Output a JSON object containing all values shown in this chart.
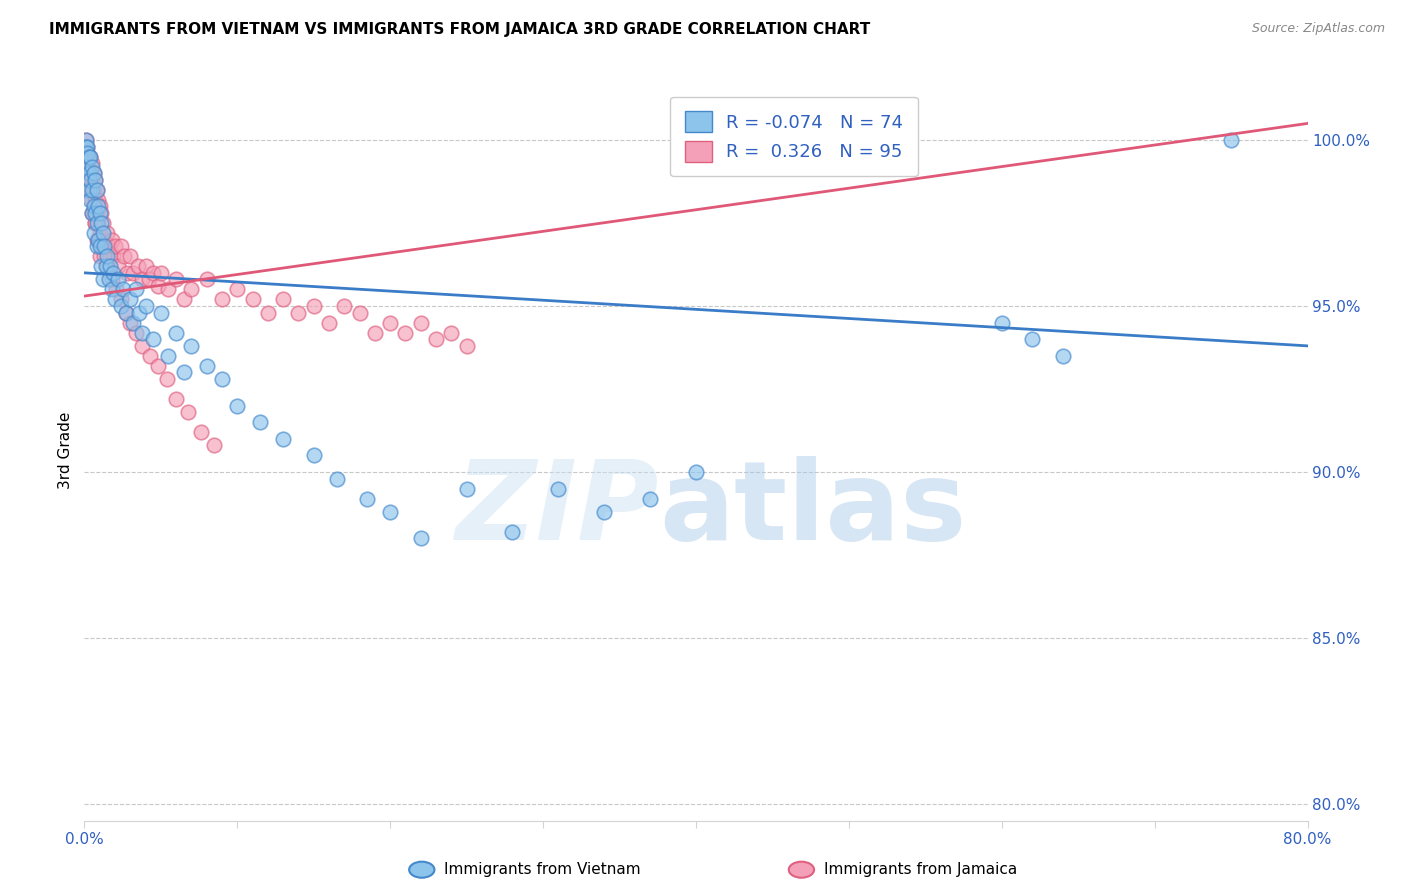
{
  "title": "IMMIGRANTS FROM VIETNAM VS IMMIGRANTS FROM JAMAICA 3RD GRADE CORRELATION CHART",
  "source": "Source: ZipAtlas.com",
  "ylabel": "3rd Grade",
  "right_yticks": [
    0.8,
    0.85,
    0.9,
    0.95,
    1.0
  ],
  "right_yticklabels": [
    "80.0%",
    "85.0%",
    "90.0%",
    "95.0%",
    "100.0%"
  ],
  "xlim": [
    0.0,
    0.8
  ],
  "ylim": [
    0.795,
    1.018
  ],
  "xticks": [
    0.0,
    0.1,
    0.2,
    0.3,
    0.4,
    0.5,
    0.6,
    0.7,
    0.8
  ],
  "xticklabels": [
    "0.0%",
    "",
    "",
    "",
    "",
    "",
    "",
    "",
    "80.0%"
  ],
  "color_vietnam": "#8CC4EC",
  "color_jamaica": "#F4A0B8",
  "edge_vietnam": "#4488CC",
  "edge_jamaica": "#E06080",
  "line_color_vietnam": "#3A7CC8",
  "line_color_jamaica": "#E05878",
  "R_vietnam": -0.074,
  "N_vietnam": 74,
  "R_jamaica": 0.326,
  "N_jamaica": 95,
  "vietnam_x": [
    0.001,
    0.001,
    0.002,
    0.002,
    0.002,
    0.003,
    0.003,
    0.003,
    0.004,
    0.004,
    0.004,
    0.005,
    0.005,
    0.005,
    0.006,
    0.006,
    0.006,
    0.007,
    0.007,
    0.008,
    0.008,
    0.008,
    0.009,
    0.009,
    0.01,
    0.01,
    0.011,
    0.011,
    0.012,
    0.012,
    0.013,
    0.014,
    0.015,
    0.016,
    0.017,
    0.018,
    0.019,
    0.02,
    0.022,
    0.024,
    0.025,
    0.027,
    0.03,
    0.032,
    0.034,
    0.036,
    0.038,
    0.04,
    0.045,
    0.05,
    0.055,
    0.06,
    0.065,
    0.07,
    0.08,
    0.09,
    0.1,
    0.115,
    0.13,
    0.15,
    0.165,
    0.185,
    0.2,
    0.22,
    0.25,
    0.28,
    0.31,
    0.34,
    0.37,
    0.4,
    0.6,
    0.62,
    0.64,
    0.75
  ],
  "vietnam_y": [
    1.0,
    0.998,
    0.998,
    0.996,
    0.992,
    0.995,
    0.99,
    0.985,
    0.995,
    0.988,
    0.982,
    0.992,
    0.985,
    0.978,
    0.99,
    0.98,
    0.972,
    0.988,
    0.978,
    0.985,
    0.975,
    0.968,
    0.98,
    0.97,
    0.978,
    0.968,
    0.975,
    0.962,
    0.972,
    0.958,
    0.968,
    0.962,
    0.965,
    0.958,
    0.962,
    0.955,
    0.96,
    0.952,
    0.958,
    0.95,
    0.955,
    0.948,
    0.952,
    0.945,
    0.955,
    0.948,
    0.942,
    0.95,
    0.94,
    0.948,
    0.935,
    0.942,
    0.93,
    0.938,
    0.932,
    0.928,
    0.92,
    0.915,
    0.91,
    0.905,
    0.898,
    0.892,
    0.888,
    0.88,
    0.895,
    0.882,
    0.895,
    0.888,
    0.892,
    0.9,
    0.945,
    0.94,
    0.935,
    1.0
  ],
  "jamaica_x": [
    0.001,
    0.001,
    0.001,
    0.002,
    0.002,
    0.002,
    0.003,
    0.003,
    0.003,
    0.004,
    0.004,
    0.004,
    0.005,
    0.005,
    0.005,
    0.006,
    0.006,
    0.006,
    0.007,
    0.007,
    0.007,
    0.008,
    0.008,
    0.008,
    0.009,
    0.009,
    0.01,
    0.01,
    0.01,
    0.011,
    0.011,
    0.012,
    0.013,
    0.014,
    0.015,
    0.016,
    0.017,
    0.018,
    0.019,
    0.02,
    0.022,
    0.024,
    0.026,
    0.028,
    0.03,
    0.032,
    0.035,
    0.038,
    0.04,
    0.042,
    0.045,
    0.048,
    0.05,
    0.055,
    0.06,
    0.065,
    0.07,
    0.08,
    0.09,
    0.1,
    0.11,
    0.12,
    0.13,
    0.14,
    0.15,
    0.16,
    0.17,
    0.18,
    0.19,
    0.2,
    0.21,
    0.22,
    0.23,
    0.24,
    0.25,
    0.005,
    0.007,
    0.009,
    0.011,
    0.013,
    0.015,
    0.018,
    0.021,
    0.024,
    0.027,
    0.03,
    0.034,
    0.038,
    0.043,
    0.048,
    0.054,
    0.06,
    0.068,
    0.076,
    0.085
  ],
  "jamaica_y": [
    1.0,
    0.998,
    0.996,
    0.998,
    0.996,
    0.994,
    0.995,
    0.992,
    0.988,
    0.995,
    0.99,
    0.985,
    0.993,
    0.988,
    0.982,
    0.99,
    0.985,
    0.978,
    0.988,
    0.982,
    0.975,
    0.985,
    0.978,
    0.97,
    0.982,
    0.975,
    0.98,
    0.972,
    0.965,
    0.978,
    0.97,
    0.975,
    0.97,
    0.968,
    0.972,
    0.968,
    0.965,
    0.97,
    0.965,
    0.968,
    0.962,
    0.968,
    0.965,
    0.96,
    0.965,
    0.96,
    0.962,
    0.958,
    0.962,
    0.958,
    0.96,
    0.956,
    0.96,
    0.955,
    0.958,
    0.952,
    0.955,
    0.958,
    0.952,
    0.955,
    0.952,
    0.948,
    0.952,
    0.948,
    0.95,
    0.945,
    0.95,
    0.948,
    0.942,
    0.945,
    0.942,
    0.945,
    0.94,
    0.942,
    0.938,
    0.978,
    0.975,
    0.97,
    0.968,
    0.965,
    0.962,
    0.958,
    0.955,
    0.952,
    0.948,
    0.945,
    0.942,
    0.938,
    0.935,
    0.932,
    0.928,
    0.922,
    0.918,
    0.912,
    0.908
  ],
  "viet_line_x0": 0.0,
  "viet_line_y0": 0.96,
  "viet_line_x1": 0.8,
  "viet_line_y1": 0.938,
  "jam_line_x0": 0.0,
  "jam_line_y0": 0.953,
  "jam_line_x1": 0.8,
  "jam_line_y1": 1.005
}
